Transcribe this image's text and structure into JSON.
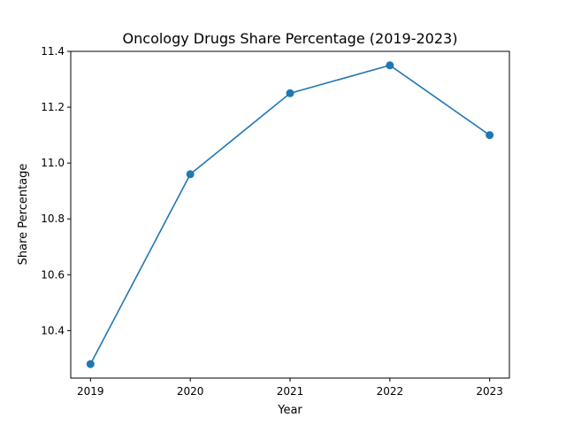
{
  "chart_data": {
    "type": "line",
    "title": "Oncology Drugs Share Percentage (2019-2023)",
    "xlabel": "Year",
    "ylabel": "Share Percentage",
    "x": [
      "2019",
      "2020",
      "2021",
      "2022",
      "2023"
    ],
    "series": [
      {
        "values": [
          10.28,
          10.96,
          11.25,
          11.35,
          11.1
        ],
        "color": "#1f77b4",
        "marker": "circle"
      }
    ],
    "yticks": [
      "10.4",
      "10.6",
      "10.8",
      "11.0",
      "11.2",
      "11.4"
    ],
    "ylim": [
      10.23,
      11.4
    ],
    "grid": false,
    "legend": "none"
  }
}
